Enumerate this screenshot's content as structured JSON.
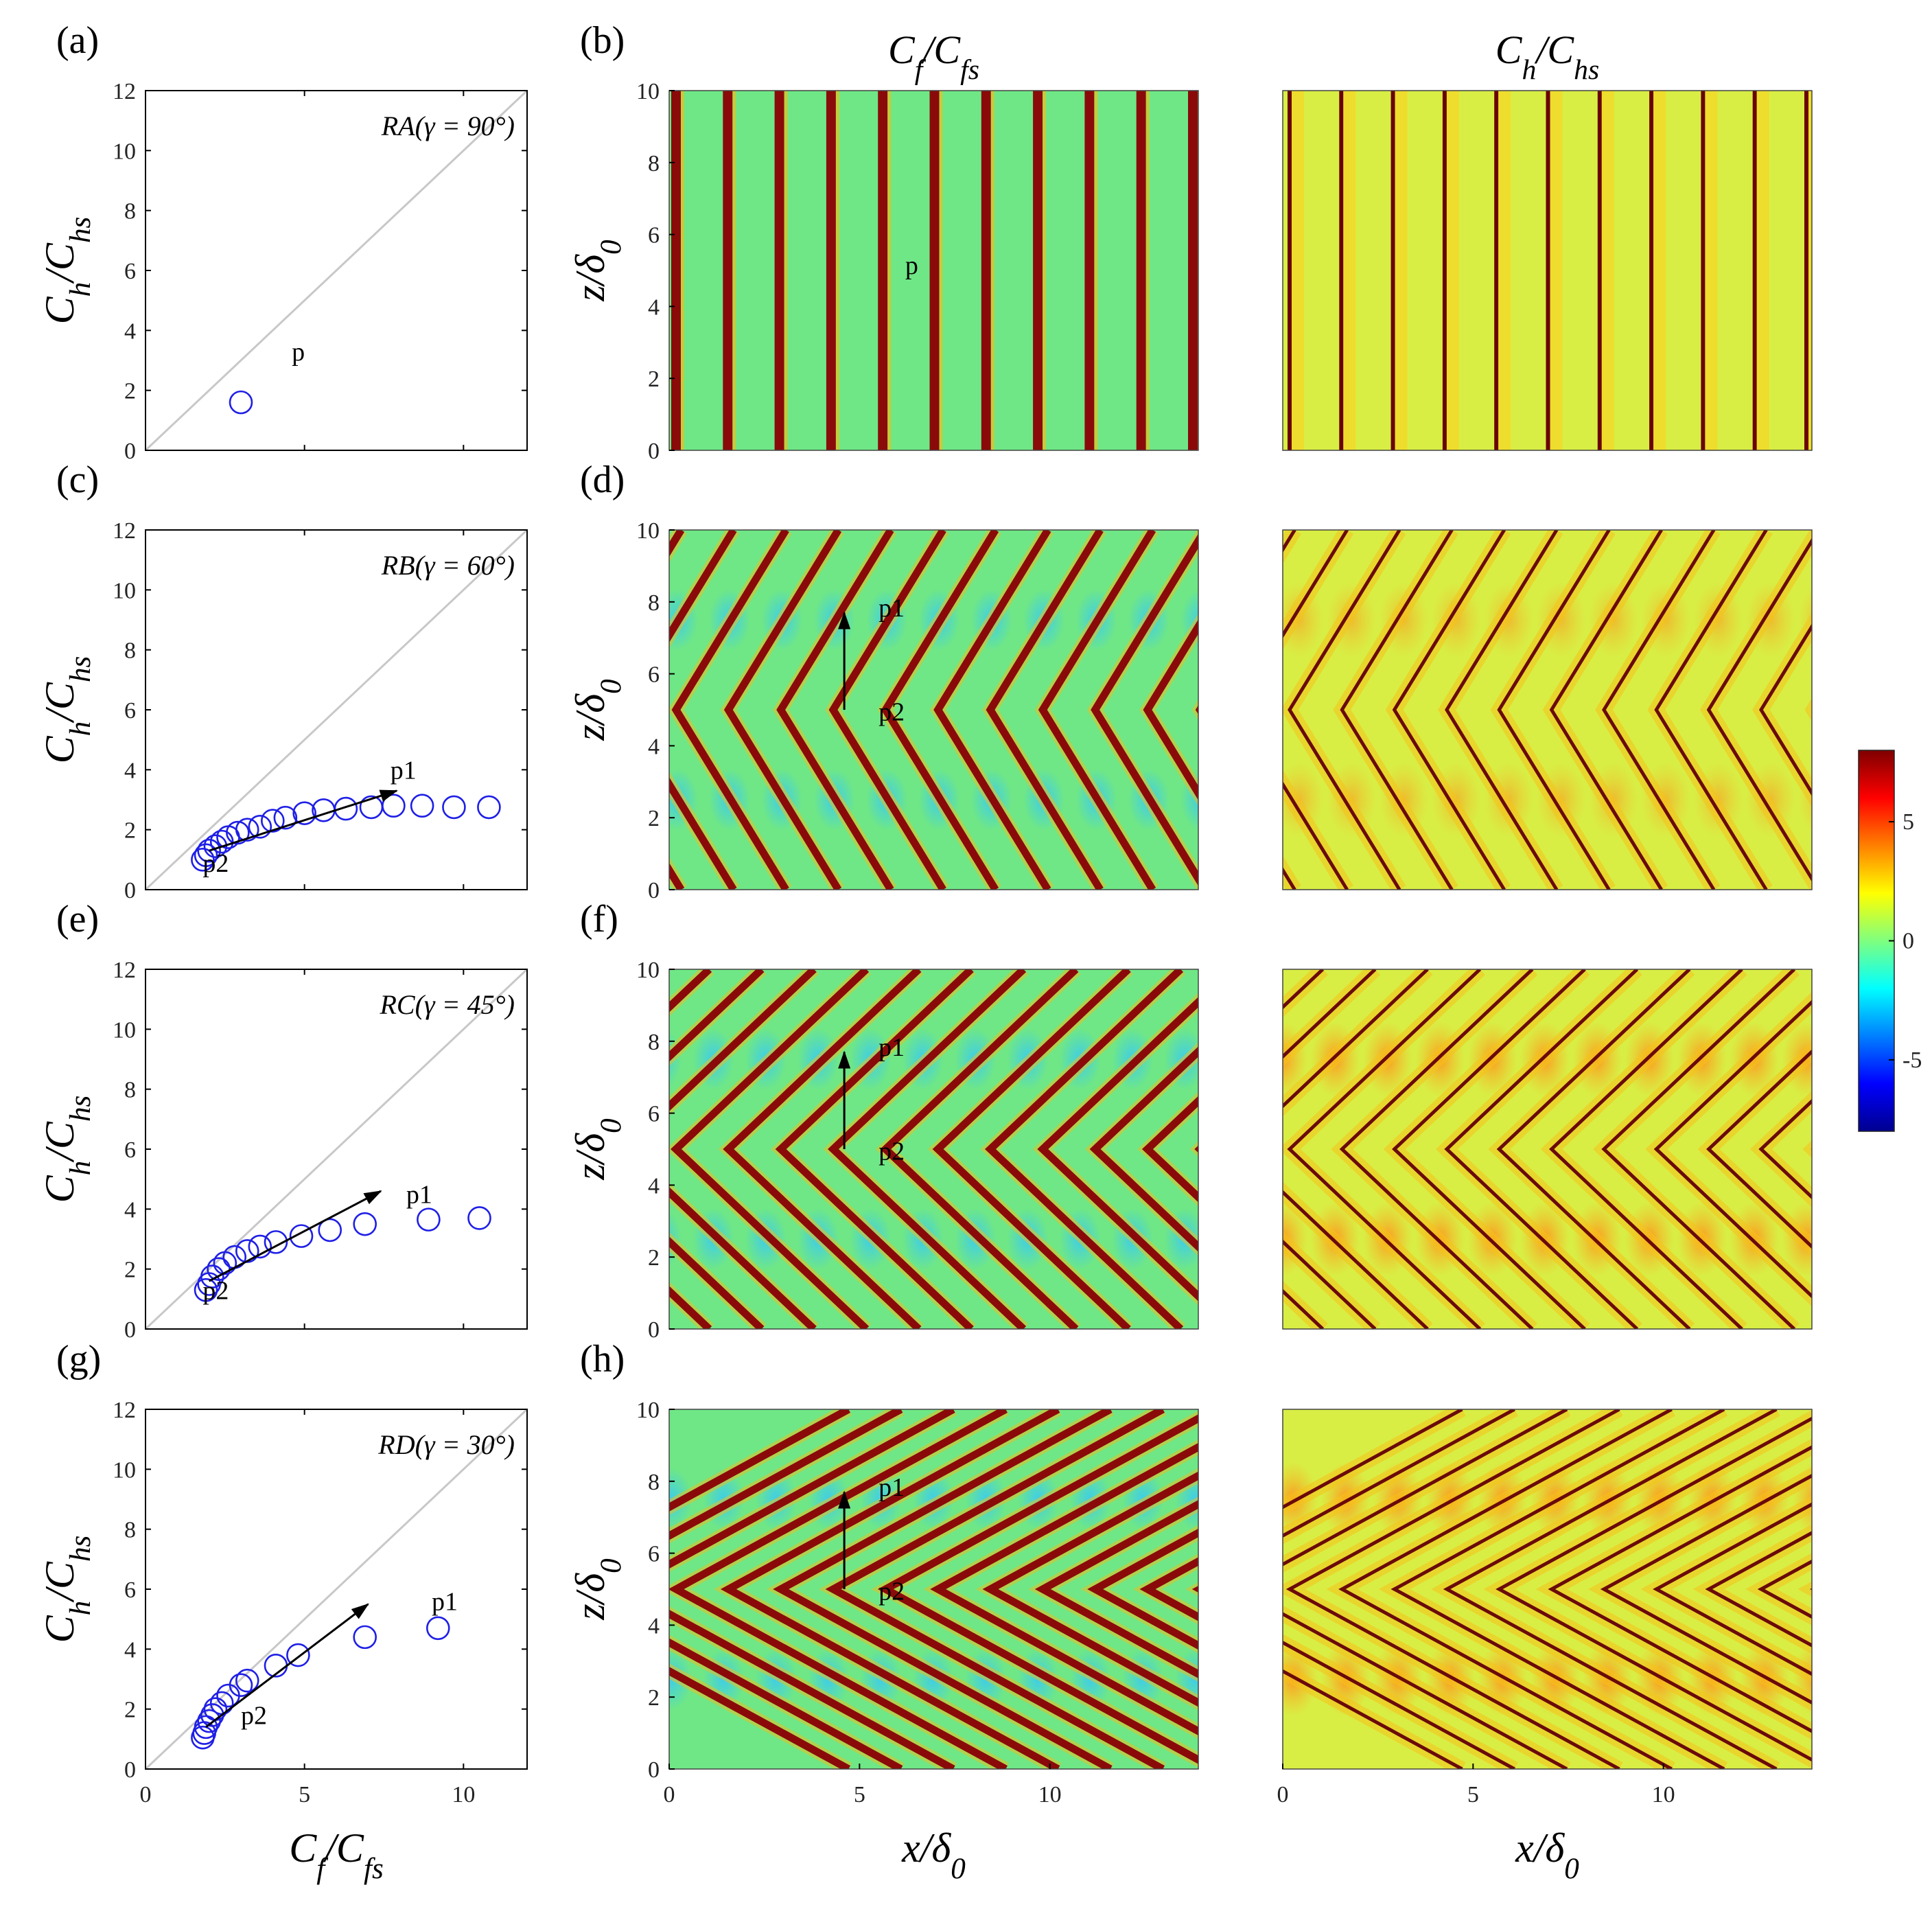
{
  "figure": {
    "colorbar": {
      "ticks": [
        "5",
        "0",
        "-5"
      ],
      "range": [
        -8,
        8
      ]
    },
    "col_titles": {
      "cf": "C_f/C_fs",
      "ch": "C_h/C_hs"
    },
    "axis_labels": {
      "scatter_x": "C_f/C_fs",
      "scatter_y": "C_h/C_hs",
      "map_x": "x/δ_0",
      "map_y": "z/δ_0"
    },
    "ticks": {
      "scatter_x": [
        "0",
        "5",
        "10"
      ],
      "scatter_y": [
        "0",
        "2",
        "4",
        "6",
        "8",
        "10",
        "12"
      ],
      "map_x": [
        "0",
        "5",
        "10"
      ],
      "map_y": [
        "0",
        "2",
        "4",
        "6",
        "8",
        "10"
      ]
    },
    "colors": {
      "marker": "#1f1fe6",
      "diagonal": "#c8c8c8",
      "arrow": "#000000"
    }
  },
  "chart_data": [
    {
      "type": "scatter",
      "panel": "(a)",
      "case": "RA(γ = 90°)",
      "gamma_deg": 90,
      "xlim": [
        0,
        12
      ],
      "ylim": [
        0,
        12
      ],
      "points": [
        [
          3.0,
          1.6
        ]
      ],
      "annotations": [
        {
          "text": "p",
          "x": 4.6,
          "y": 3.0
        }
      ],
      "arrow": null
    },
    {
      "type": "heatmap",
      "panel": "(b)",
      "quantity": "C_f/C_fs",
      "gamma_deg": 90,
      "xlim": [
        0,
        13.9
      ],
      "ylim": [
        0,
        10
      ],
      "annotations": [
        {
          "text": "p",
          "x": 6.2,
          "y": 4.9
        }
      ]
    },
    {
      "type": "heatmap",
      "panel": "",
      "quantity": "C_h/C_hs",
      "gamma_deg": 90,
      "xlim": [
        0,
        13.9
      ],
      "ylim": [
        0,
        10
      ]
    },
    {
      "type": "scatter",
      "panel": "(c)",
      "case": "RB(γ = 60°)",
      "gamma_deg": 60,
      "xlim": [
        0,
        12
      ],
      "ylim": [
        0,
        12
      ],
      "points": [
        [
          1.8,
          1.0
        ],
        [
          1.9,
          1.15
        ],
        [
          2.0,
          1.3
        ],
        [
          2.2,
          1.45
        ],
        [
          2.4,
          1.6
        ],
        [
          2.6,
          1.75
        ],
        [
          2.9,
          1.9
        ],
        [
          3.2,
          2.0
        ],
        [
          3.6,
          2.1
        ],
        [
          4.0,
          2.3
        ],
        [
          4.4,
          2.4
        ],
        [
          5.0,
          2.55
        ],
        [
          5.6,
          2.65
        ],
        [
          6.3,
          2.7
        ],
        [
          7.1,
          2.75
        ],
        [
          7.8,
          2.8
        ],
        [
          8.7,
          2.8
        ],
        [
          9.7,
          2.75
        ],
        [
          10.8,
          2.75
        ]
      ],
      "annotations": [
        {
          "text": "p1",
          "x": 7.7,
          "y": 3.7
        },
        {
          "text": "p2",
          "x": 1.8,
          "y": 0.6
        }
      ],
      "arrow": {
        "from": [
          2.0,
          1.3
        ],
        "to": [
          7.9,
          3.3
        ]
      }
    },
    {
      "type": "heatmap",
      "panel": "(d)",
      "quantity": "C_f/C_fs",
      "gamma_deg": 60,
      "xlim": [
        0,
        13.9
      ],
      "ylim": [
        0,
        10
      ],
      "annotations": [
        {
          "text": "p1",
          "x": 5.5,
          "y": 7.6
        },
        {
          "text": "p2",
          "x": 5.5,
          "y": 4.7
        }
      ],
      "arrow": {
        "from": [
          4.6,
          5.0
        ],
        "to": [
          4.6,
          7.7
        ]
      }
    },
    {
      "type": "heatmap",
      "panel": "",
      "quantity": "C_h/C_hs",
      "gamma_deg": 60,
      "xlim": [
        0,
        13.9
      ],
      "ylim": [
        0,
        10
      ]
    },
    {
      "type": "scatter",
      "panel": "(e)",
      "case": "RC(γ = 45°)",
      "gamma_deg": 45,
      "xlim": [
        0,
        12
      ],
      "ylim": [
        0,
        12
      ],
      "points": [
        [
          1.9,
          1.3
        ],
        [
          2.0,
          1.5
        ],
        [
          2.1,
          1.75
        ],
        [
          2.3,
          2.0
        ],
        [
          2.5,
          2.2
        ],
        [
          2.8,
          2.4
        ],
        [
          3.2,
          2.6
        ],
        [
          3.6,
          2.75
        ],
        [
          4.1,
          2.9
        ],
        [
          4.9,
          3.1
        ],
        [
          5.8,
          3.3
        ],
        [
          6.9,
          3.5
        ],
        [
          8.9,
          3.65
        ],
        [
          10.5,
          3.7
        ]
      ],
      "annotations": [
        {
          "text": "p1",
          "x": 8.2,
          "y": 4.2
        },
        {
          "text": "p2",
          "x": 1.8,
          "y": 1.0
        }
      ],
      "arrow": {
        "from": [
          2.0,
          1.6
        ],
        "to": [
          7.4,
          4.6
        ]
      }
    },
    {
      "type": "heatmap",
      "panel": "(f)",
      "quantity": "C_f/C_fs",
      "gamma_deg": 45,
      "xlim": [
        0,
        13.9
      ],
      "ylim": [
        0,
        10
      ],
      "annotations": [
        {
          "text": "p1",
          "x": 5.5,
          "y": 7.6
        },
        {
          "text": "p2",
          "x": 5.5,
          "y": 4.7
        }
      ],
      "arrow": {
        "from": [
          4.6,
          5.0
        ],
        "to": [
          4.6,
          7.7
        ]
      }
    },
    {
      "type": "heatmap",
      "panel": "",
      "quantity": "C_h/C_hs",
      "gamma_deg": 45,
      "xlim": [
        0,
        13.9
      ],
      "ylim": [
        0,
        10
      ]
    },
    {
      "type": "scatter",
      "panel": "(g)",
      "case": "RD(γ = 30°)",
      "gamma_deg": 30,
      "xlim": [
        0,
        12
      ],
      "ylim": [
        0,
        12
      ],
      "points": [
        [
          1.8,
          1.05
        ],
        [
          1.85,
          1.2
        ],
        [
          1.9,
          1.4
        ],
        [
          2.0,
          1.6
        ],
        [
          2.1,
          1.8
        ],
        [
          2.2,
          2.0
        ],
        [
          2.4,
          2.2
        ],
        [
          2.6,
          2.45
        ],
        [
          3.0,
          2.8
        ],
        [
          3.2,
          2.95
        ],
        [
          4.1,
          3.45
        ],
        [
          4.8,
          3.8
        ],
        [
          6.9,
          4.4
        ],
        [
          9.2,
          4.7
        ]
      ],
      "annotations": [
        {
          "text": "p1",
          "x": 9.0,
          "y": 5.3
        },
        {
          "text": "p2",
          "x": 3.0,
          "y": 1.5
        }
      ],
      "arrow": {
        "from": [
          1.9,
          1.4
        ],
        "to": [
          7.0,
          5.5
        ]
      }
    },
    {
      "type": "heatmap",
      "panel": "(h)",
      "quantity": "C_f/C_fs",
      "gamma_deg": 30,
      "xlim": [
        0,
        13.9
      ],
      "ylim": [
        0,
        10
      ],
      "annotations": [
        {
          "text": "p1",
          "x": 5.5,
          "y": 7.6
        },
        {
          "text": "p2",
          "x": 5.5,
          "y": 4.7
        }
      ],
      "arrow": {
        "from": [
          4.6,
          5.0
        ],
        "to": [
          4.6,
          7.7
        ]
      }
    },
    {
      "type": "heatmap",
      "panel": "",
      "quantity": "C_h/C_hs",
      "gamma_deg": 30,
      "xlim": [
        0,
        13.9
      ],
      "ylim": [
        0,
        10
      ]
    }
  ]
}
